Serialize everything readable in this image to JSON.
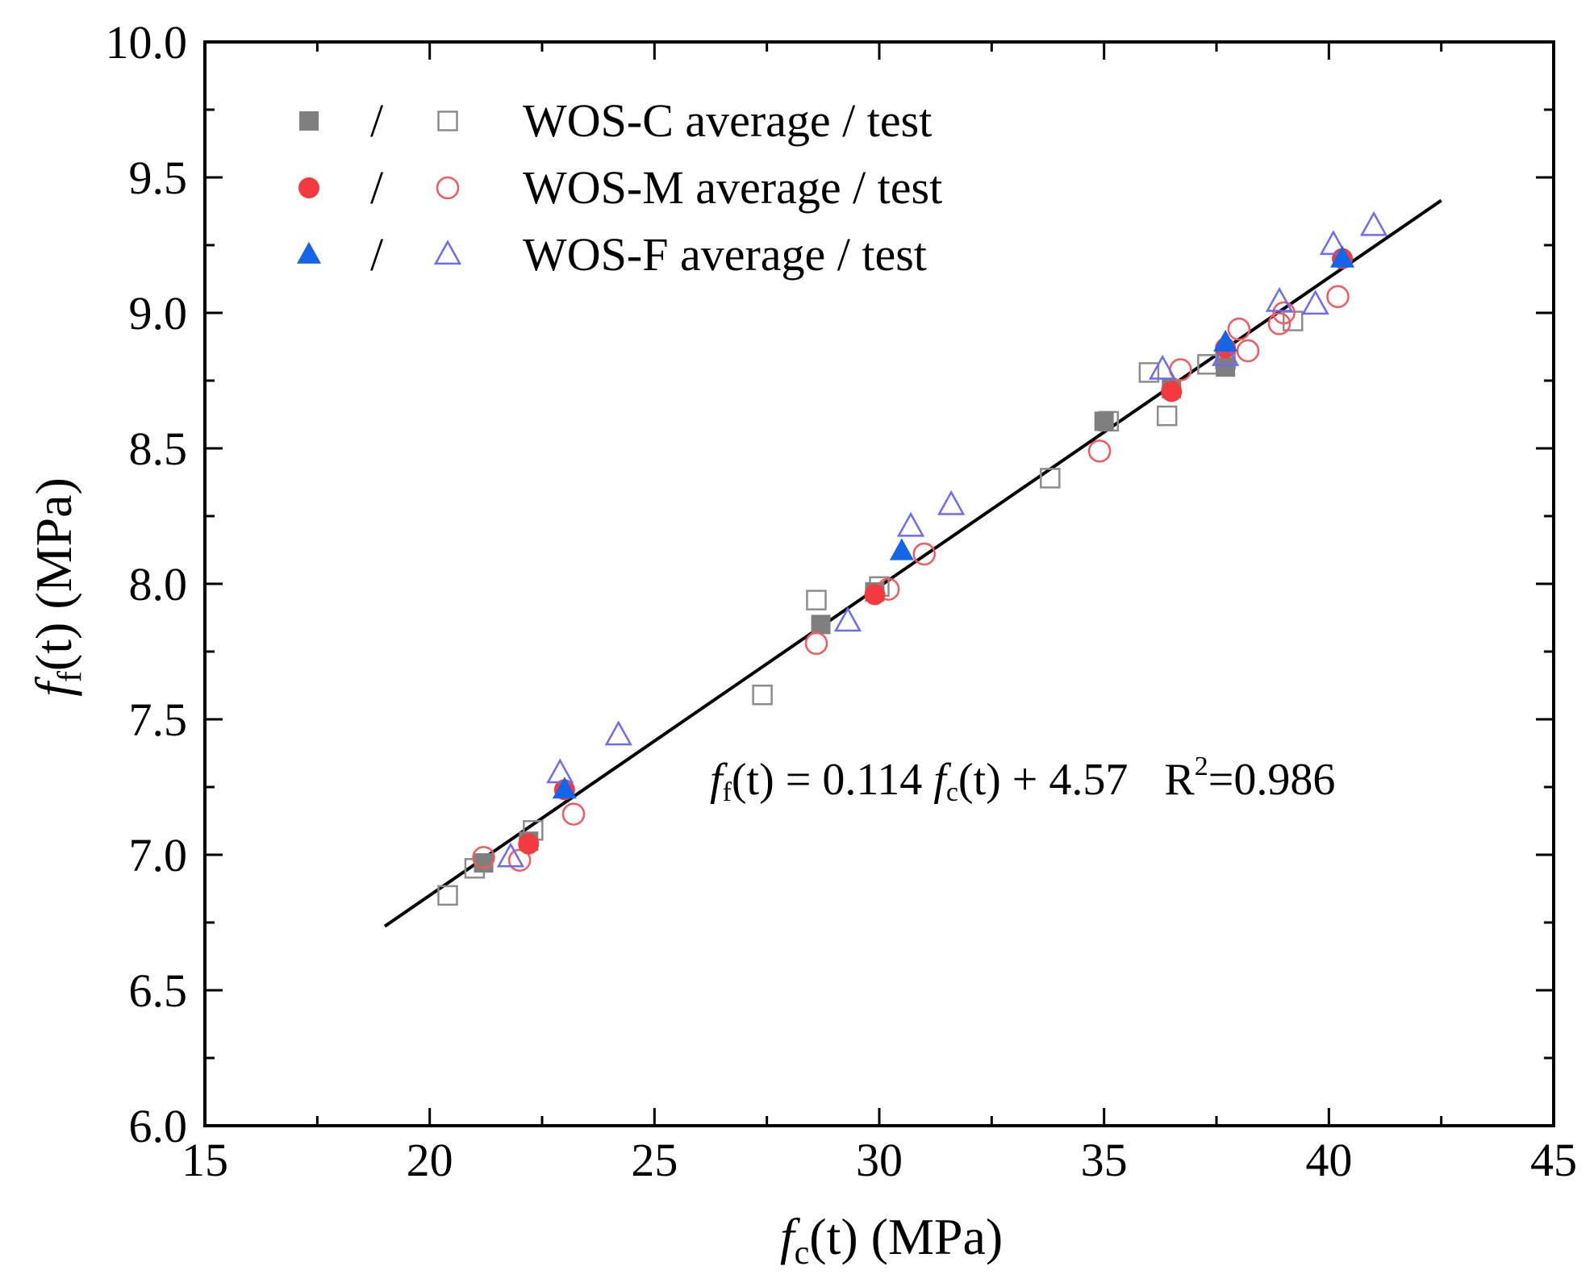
{
  "chart_data": {
    "type": "scatter",
    "xlabel": {
      "var": "f",
      "sub": "c",
      "arg": "(t)",
      "unit": "(MPa)"
    },
    "ylabel": {
      "var": "f",
      "sub": "f",
      "arg": "(t)",
      "unit": "(MPa)"
    },
    "xlim": [
      15,
      45
    ],
    "ylim": [
      6.0,
      10.0
    ],
    "xticks": [
      15,
      20,
      25,
      30,
      35,
      40,
      45
    ],
    "yticks": [
      6.0,
      6.5,
      7.0,
      7.5,
      8.0,
      8.5,
      9.0,
      9.5,
      10.0
    ],
    "xtick_labels": [
      "15",
      "20",
      "25",
      "30",
      "35",
      "40",
      "45"
    ],
    "ytick_labels": [
      "6.0",
      "6.5",
      "7.0",
      "7.5",
      "8.0",
      "8.5",
      "9.0",
      "9.5",
      "10.0"
    ],
    "legend_position": "top-left",
    "legend_separator": "/",
    "series": [
      {
        "name": "WOS-C average / test",
        "marker": "square",
        "avg_color": "#7f7f7f",
        "test_color": "#8c8c8c",
        "average": [
          [
            21.2,
            6.97
          ],
          [
            22.2,
            7.05
          ],
          [
            28.7,
            7.85
          ],
          [
            29.9,
            7.97
          ],
          [
            35.0,
            8.6
          ],
          [
            36.5,
            8.72
          ],
          [
            37.7,
            8.8
          ]
        ],
        "test": [
          [
            20.4,
            6.85
          ],
          [
            21.0,
            6.95
          ],
          [
            22.3,
            7.09
          ],
          [
            27.4,
            7.59
          ],
          [
            28.6,
            7.94
          ],
          [
            30.0,
            7.99
          ],
          [
            33.8,
            8.39
          ],
          [
            35.1,
            8.6
          ],
          [
            36.0,
            8.78
          ],
          [
            36.4,
            8.62
          ],
          [
            37.3,
            8.81
          ],
          [
            37.7,
            8.83
          ],
          [
            39.2,
            8.97
          ]
        ]
      },
      {
        "name": "WOS-M average / test",
        "marker": "circle",
        "avg_color": "#f23a3f",
        "test_color": "#f25a5e",
        "average": [
          [
            22.2,
            7.04
          ],
          [
            23.0,
            7.24
          ],
          [
            29.9,
            7.96
          ],
          [
            36.5,
            8.71
          ],
          [
            37.7,
            8.87
          ],
          [
            40.3,
            9.2
          ]
        ],
        "test": [
          [
            21.2,
            6.99
          ],
          [
            22.0,
            6.98
          ],
          [
            23.2,
            7.15
          ],
          [
            28.6,
            7.78
          ],
          [
            30.2,
            7.98
          ],
          [
            31.0,
            8.11
          ],
          [
            34.9,
            8.49
          ],
          [
            36.7,
            8.79
          ],
          [
            38.0,
            8.94
          ],
          [
            38.2,
            8.86
          ],
          [
            38.9,
            8.96
          ],
          [
            39.0,
            9.0
          ],
          [
            40.2,
            9.06
          ]
        ]
      },
      {
        "name": "WOS-F average / test",
        "marker": "triangle",
        "avg_color": "#1565e8",
        "test_color": "#6b6bf5",
        "average": [
          [
            23.0,
            7.24
          ],
          [
            30.5,
            8.12
          ],
          [
            37.7,
            8.89
          ],
          [
            40.3,
            9.2
          ]
        ],
        "test": [
          [
            21.8,
            6.99
          ],
          [
            22.9,
            7.3
          ],
          [
            24.2,
            7.44
          ],
          [
            29.3,
            7.86
          ],
          [
            30.7,
            8.21
          ],
          [
            31.6,
            8.29
          ],
          [
            36.3,
            8.79
          ],
          [
            37.7,
            8.84
          ],
          [
            38.9,
            9.04
          ],
          [
            39.7,
            9.03
          ],
          [
            40.1,
            9.25
          ],
          [
            41.0,
            9.32
          ]
        ]
      }
    ],
    "fit": {
      "slope": 0.114,
      "intercept": 4.57,
      "x_range": [
        19.0,
        42.5
      ],
      "color": "#000000",
      "label": {
        "lhs_var": "f",
        "lhs_sub": "f",
        "lhs_arg": "(t)",
        "equals": " = 0.114 ",
        "rhs_var": "f",
        "rhs_sub": "c",
        "rhs_arg": "(t)",
        "constant": " + 4.57",
        "r_label": "R",
        "r_exp": "2",
        "r_value": "=0.986"
      }
    }
  }
}
